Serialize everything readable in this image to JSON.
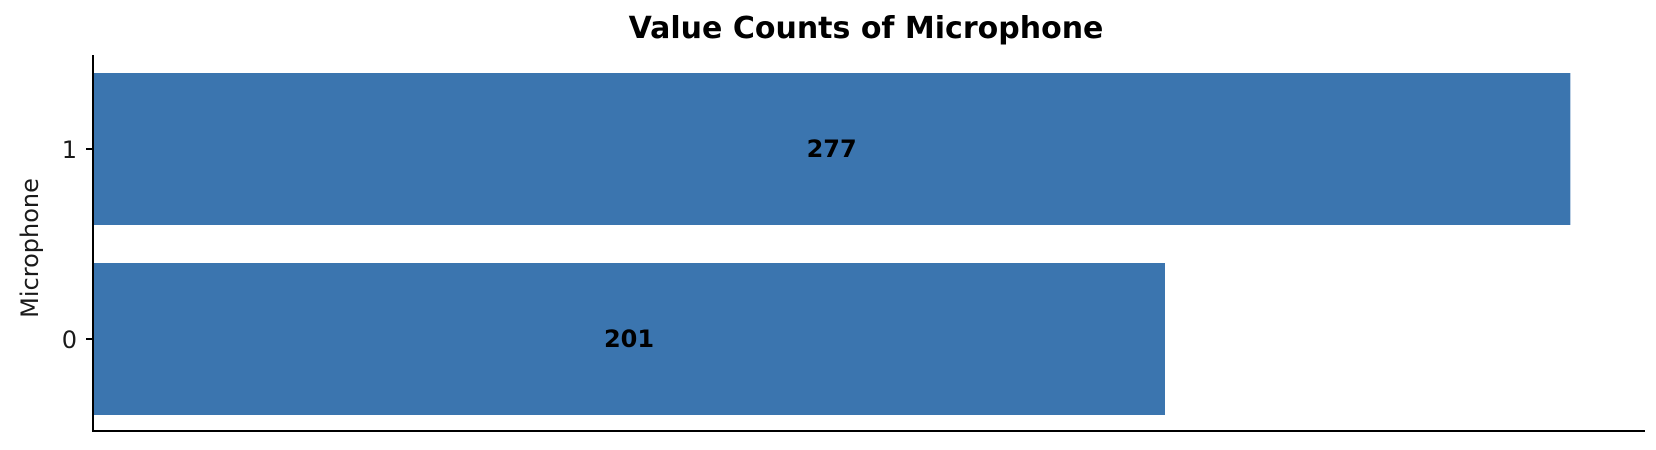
{
  "chart_data": {
    "type": "bar",
    "orientation": "horizontal",
    "title": "Value Counts of Microphone",
    "xlabel": "",
    "ylabel": "Microphone",
    "categories": [
      "1",
      "0"
    ],
    "values": [
      277,
      201
    ],
    "data_labels": [
      "277",
      "201"
    ],
    "xlim": [
      0,
      291
    ],
    "bar_color": "#3b75af",
    "grid": false,
    "legend": "none"
  }
}
